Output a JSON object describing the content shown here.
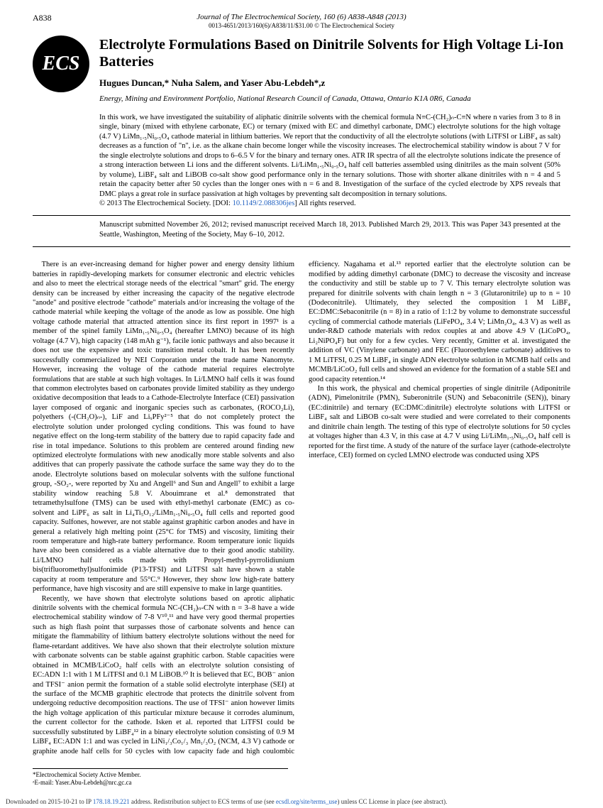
{
  "page_number": "A838",
  "journal": {
    "line": "Journal of The Electrochemical Society, 160 (6) A838-A848 (2013)",
    "sub": "0013-4651/2013/160(6)/A838/11/$31.00 © The Electrochemical Society"
  },
  "logo_text": "ECS",
  "title": "Electrolyte Formulations Based on Dinitrile Solvents for High Voltage Li-Ion Batteries",
  "authors_html": "Hugues Duncan,* Nuha Salem, and Yaser Abu-Lebdeh*,z",
  "affiliation": "Energy, Mining and Environment Portfolio, National Research Council of Canada, Ottawa, Ontario K1A 0R6, Canada",
  "abstract": "In this work, we have investigated the suitability of aliphatic dinitrile solvents with the chemical formula N≡C-(CH₂)ₙ-C≡N where n varies from 3 to 8 in single, binary (mixed with ethylene carbonate, EC) or ternary (mixed with EC and dimethyl carbonate, DMC) electrolyte solutions for the high voltage (4.7 V) LiMn₁.₅Ni₀.₅O₄ cathode material in lithium batteries. We report that the conductivity of all the electrolyte solutions (with LiTFSI or LiBF₄ as salt) decreases as a function of \"n\", i.e. as the alkane chain become longer while the viscosity increases. The electrochemical stability window is about 7 V for the single electrolyte solutions and drops to 6–6.5 V for the binary and ternary ones. ATR IR spectra of all the electrolyte solutions indicate the presence of a strong interaction between Li ions and the different solvents. Li/LiMn₁.₅Ni₀.₅O₄ half cell batteries assembled using dinitriles as the main solvent (50% by volume), LiBF₄ salt and LiBOB co-salt show good performance only in the ternary solutions. Those with shorter alkane dinitriles with n = 4 and 5 retain the capacity better after 50 cycles than the longer ones with n = 6 and 8. Investigation of the surface of the cycled electrode by XPS reveals that DMC plays a great role in surface passivation at high voltages by preventing salt decomposition in ternary solutions.",
  "copyright": "© 2013 The Electrochemical Society. [DOI: ",
  "doi": "10.1149/2.088306jes",
  "rights": "] All rights reserved.",
  "manuscript": "Manuscript submitted November 26, 2012; revised manuscript received March 18, 2013. Published March 29, 2013. This was Paper 343 presented at the Seattle, Washington, Meeting of the Society, May 6–10, 2012.",
  "body": {
    "p1": "There is an ever-increasing demand for higher power and energy density lithium batteries in rapidly-developing markets for consumer electronic and electric vehicles and also to meet the electrical storage needs of the electrical \"smart\" grid. The energy density can be increased by either increasing the capacity of the negative electrode \"anode\" and positive electrode \"cathode\" materials and/or increasing the voltage of the cathode material while keeping the voltage of the anode as low as possible. One high voltage cathode material that attracted attention since its first report in 1997¹ is a member of the spinel family LiMn₁.₅Ni₀.₅O₄ (hereafter LMNO) because of its high voltage (4.7 V), high capacity (148 mAh g⁻¹), facile ionic pathways and also because it does not use the expensive and toxic transition metal cobalt. It has been recently successfully commercialized by NEI Corporation under the trade name Nanomyte. However, increasing the voltage of the cathode material requires electrolyte formulations that are stable at such high voltages. In Li/LMNO half cells it was found that common electrolytes based on carbonates provide limited stability as they undergo oxidative decomposition that leads to a Cathode-Electrolyte Interface (CEI) passivation layer composed of organic and inorganic species such as carbonates, (ROCO₂Li), polyethers (-(CH₂O)ₙ-), LiF and LiₓPFy²⁻⁵ that do not completely protect the electrolyte solution under prolonged cycling conditions. This was found to have negative effect on the long-term stability of the battery due to rapid capacity fade and rise in total impedance. Solutions to this problem are centered around finding new optimized electrolyte formulations with new anodically more stable solvents and also additives that can properly passivate the cathode surface the same way they do to the anode. Electrolyte solutions based on molecular solvents with the sulfone functional group, -SO₂-, were reported by Xu and Angell⁶ and Sun and Angell⁷ to exhibit a large stability window reaching 5.8 V. Abouimrane et al.⁸ demonstrated that tetramethylsulfone (TMS) can be used with ethyl-methyl carbonate (EMC) as co-solvent and LiPF₆ as salt in Li₄Ti₅O₁₂/LiMn₁.₅Ni₀.₅O₄ full cells and reported good capacity. Sulfones, however, are not stable against graphitic carbon anodes and have in general a relatively high melting point (25°C for TMS) and viscosity, limiting their room temperature and high-rate battery performance. Room temperature ionic liquids have also been considered as a viable alternative due to their good anodic stability. Li/LMNO half cells made with Propyl-methyl-pyrrolidiunium bis(trifluoromethyl)sulfonimide (P13-TFSI) and LiTFSI salt have shown a stable capacity at room temperature and 55°C.⁹ However, they show low high-rate battery performance, have high viscosity and are still expensive to make in large quantities.",
    "p2": "Recently, we have shown that electrolyte solutions based on aprotic aliphatic dinitrile solvents with the chemical formula NC-(CH₂)ₙ-CN with n = 3–8 have a wide electrochemical stability window of 7-8 V¹⁰,¹¹ and have very good thermal properties such as high flash point that surpasses those of carbonate solvents and hence can mitigate the flammability of lithium battery electrolyte solutions without the need for flame-retardant additives. We have also shown that their electrolyte solution mixture with carbonate solvents can be stable against graphitic carbon. Stable capacities were obtained in MCMB/LiCoO₂ half cells with an electrolyte solution consisting of EC:ADN 1:1 with 1 M LiTFSI and 0.1 M LiBOB.¹⁰ It is believed that EC, BOB⁻ anion and TFSI⁻ anion permit the formation of a stable solid electrolyte interphase (SEI) at the surface of the MCMB graphitic electrode that protects the dinitrile solvent from undergoing reductive decomposition reactions. The use of TFSI⁻ anion however limits the high voltage application of this particular mixture because it corrodes aluminum, the current collector for the cathode. Isken et al. reported that LiTFSI could be successfully substituted by LiBF₄¹² in a binary electrolyte solution consisting of 0.9 M LiBF₄ EC:ADN 1:1 and was cycled in LiNi₁/₃Co₁/₃ Mn₁/₃O₂ (NCM, 4.3 V) cathode or graphite anode half cells for 50 cycles with low capacity fade and high coulombic efficiency. Nagahama et al.¹³ reported earlier that the electrolyte solution can be modified by adding dimethyl carbonate (DMC) to decrease the viscosity and increase the conductivity and still be stable up to 7 V. This ternary electrolyte solution was prepared for dinitrile solvents with chain length n = 3 (Glutaronitrile) up to n = 10 (Dodeconitrile). Ultimately, they selected the composition 1 M LiBF₄ EC:DMC:Sebaconitrile (n = 8) in a ratio of 1:1:2 by volume to demonstrate successful cycling of commercial cathode materials (LiFePO₄, 3.4 V; LiMn₂O₄, 4.3 V) as well as under-R&D cathode materials with redox couples at and above 4.9 V (LiCoPO₄, Li₂NiPO₄F) but only for a few cycles. Very recently, Gmitter et al. investigated the addition of VC (Vinylene carbonate) and FEC (Fluoroethylene carbonate) additives to 1 M LiTFSI, 0.25 M LiBF₄ in single ADN electrolyte solution in MCMB half cells and MCMB/LiCoO₂ full cells and showed an evidence for the formation of a stable SEI and good capacity retention.¹⁴",
    "p3": "In this work, the physical and chemical properties of single dinitrile (Adiponitrile (ADN), Pimelonitrile (PMN), Suberonitrile (SUN) and Sebaconitrile (SEN)), binary (EC:dinitrile) and ternary (EC:DMC:dinitrile) electrolyte solutions with LiTFSI or LiBF₄ salt and LiBOB co-salt were studied and were correlated to their components and dinitrile chain length. The testing of this type of electrolyte solutions for 50 cycles at voltages higher than 4.3 V, in this case at 4.7 V using Li/LiMn₁.₅Ni₀.₅O₄ half cell is reported for the first time. A study of the nature of the surface layer (cathode-electrolyte interface, CEI) formed on cycled LMNO electrode was conducted using XPS"
  },
  "footnotes": {
    "f1": "*Electrochemical Society Active Member.",
    "f2": "ᶻE-mail: Yaser.Abu-Lebdeh@nrc.gc.ca"
  },
  "download": {
    "prefix": "Downloaded on 2015-10-21 to IP ",
    "ip": "178.18.19.221",
    "mid": " address. Redistribution subject to ECS terms of use (see ",
    "link": "ecsdl.org/site/terms_use",
    "suffix": ") unless CC License in place (see abstract)."
  }
}
